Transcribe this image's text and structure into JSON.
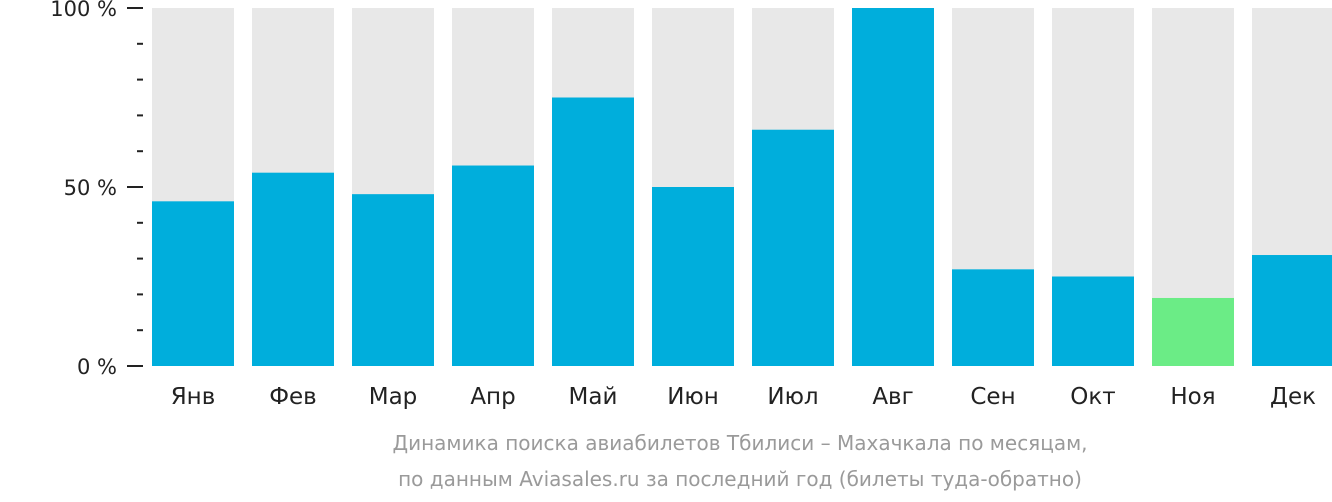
{
  "chart_data": {
    "type": "bar",
    "categories": [
      "Янв",
      "Фев",
      "Мар",
      "Апр",
      "Май",
      "Июн",
      "Июл",
      "Авг",
      "Сен",
      "Окт",
      "Ноя",
      "Дек"
    ],
    "values": [
      46,
      54,
      48,
      56,
      75,
      50,
      66,
      100,
      27,
      25,
      19,
      31
    ],
    "yticks": [
      "100 %",
      "50 %",
      "0 %"
    ],
    "ylim": [
      0,
      100
    ],
    "highlight_index": 10,
    "colors": {
      "bar": "#00aedc",
      "highlight": "#6bec86",
      "background_bar": "#e8e8e8",
      "axis": "#222222",
      "caption": "#9a9a9a"
    }
  },
  "caption": {
    "line1": "Динамика поиска авиабилетов Тбилиси – Махачкала по месяцам,",
    "line2": "по данным Aviasales.ru за последний год (билеты туда-обратно)"
  }
}
